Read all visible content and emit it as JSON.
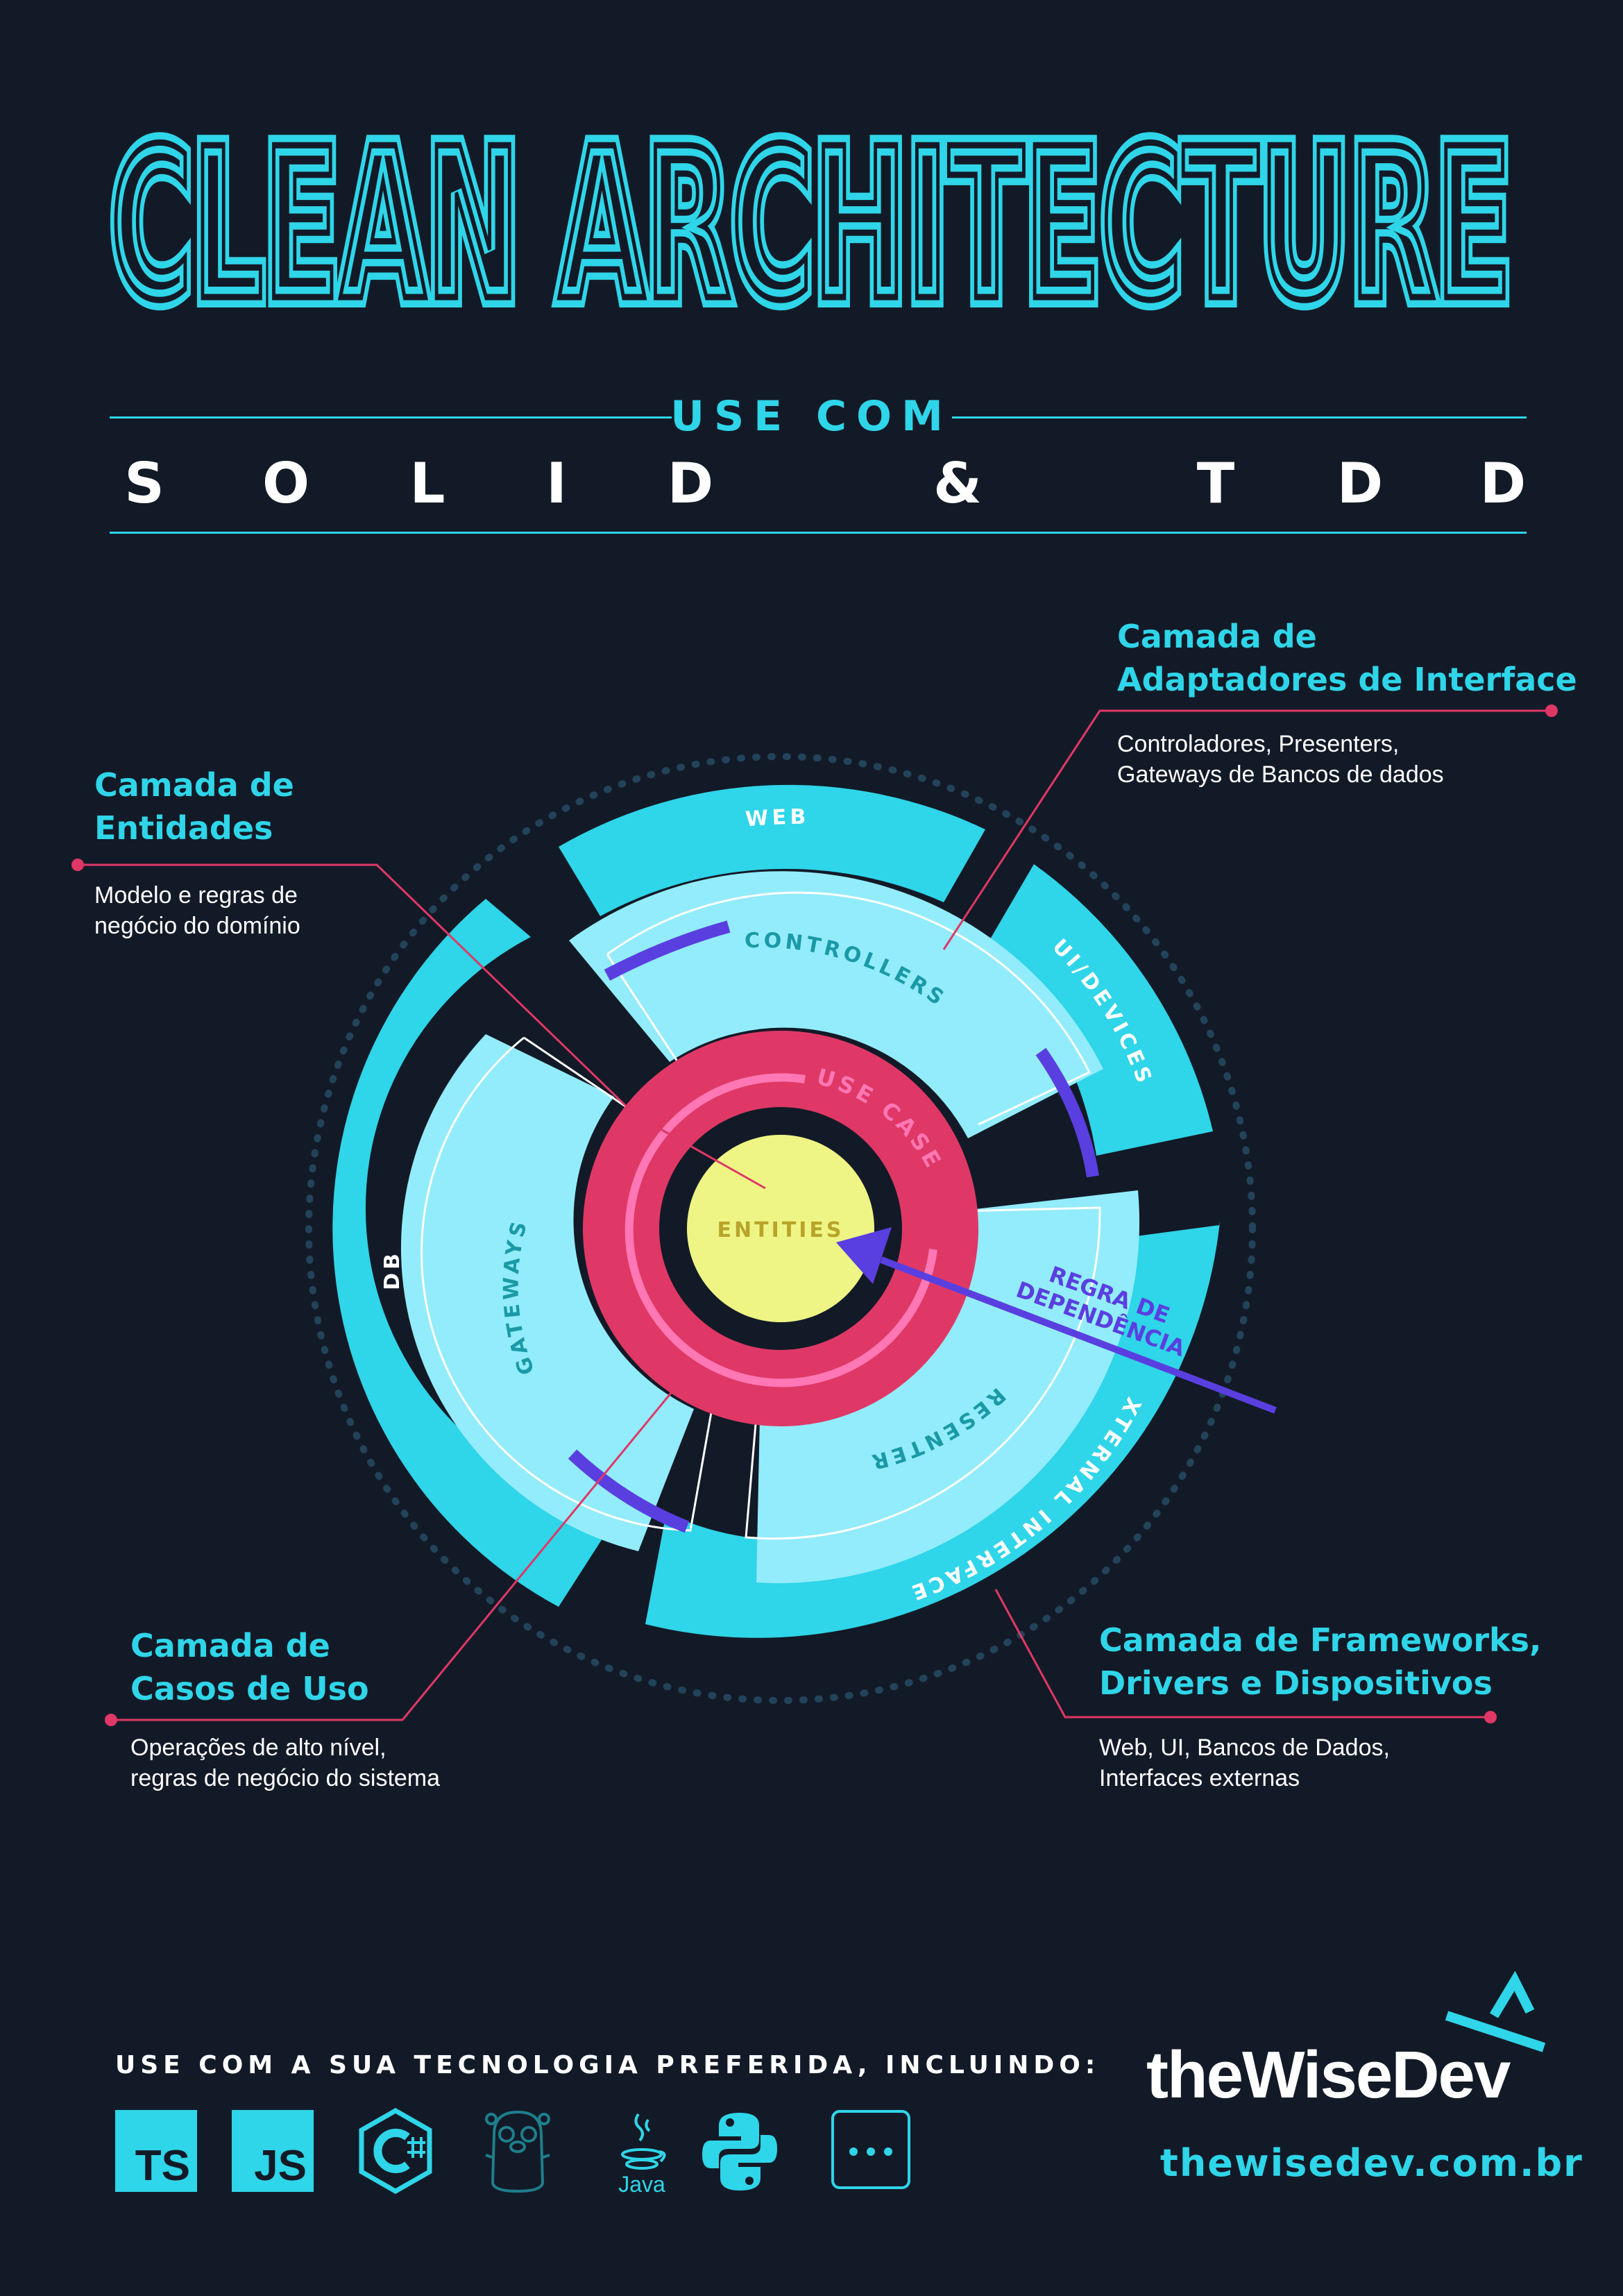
{
  "header": {
    "title": "CLEAN ARCHITECTURE",
    "subtitle": "USE COM",
    "letters": [
      "S",
      "O",
      "L",
      "I",
      "D",
      "&",
      "T",
      "D",
      "D"
    ]
  },
  "diagram": {
    "rings": {
      "outer": [
        "WEB",
        "UI/DEVICES",
        "EXTERNAL INTERFACES",
        "DB"
      ],
      "adapters": [
        "CONTROLLERS",
        "PRESENTERS",
        "GATEWAYS"
      ],
      "use_cases": "USE CASES",
      "entities": "ENTITIES"
    },
    "dependency_rule": [
      "REGRA DE",
      "DEPENDÊNCIA"
    ],
    "callouts": {
      "entities": {
        "title": [
          "Camada de",
          "Entidades"
        ],
        "desc": [
          "Modelo e regras de",
          "negócio do domínio"
        ]
      },
      "adapters": {
        "title": [
          "Camada de",
          "Adaptadores de Interface"
        ],
        "desc": [
          "Controladores, Presenters,",
          "Gateways de Bancos de dados"
        ]
      },
      "use_cases": {
        "title": [
          "Camada de",
          "Casos de Uso"
        ],
        "desc": [
          "Operações de alto nível,",
          "regras de negócio do sistema"
        ]
      },
      "frameworks": {
        "title": [
          "Camada de Frameworks,",
          "Drivers e Dispositivos"
        ],
        "desc": [
          "Web, UI, Bancos de Dados,",
          "Interfaces externas"
        ]
      }
    }
  },
  "footer": {
    "tech_label": "USE COM A SUA TECNOLOGIA PREFERIDA, INCLUINDO:",
    "technologies": [
      "TS",
      "JS",
      "Java"
    ],
    "brand": "theWiseDev",
    "url": "thewisedev.com.br"
  },
  "colors": {
    "background": "#131a27",
    "cyan": "#2fd5e8",
    "light_cyan": "#93ecfb",
    "pink": "#df3866",
    "yellow": "#eef584",
    "purple": "#5a3fe0"
  },
  "icons": [
    "csharp-icon",
    "gopher-icon",
    "java-icon",
    "python-icon",
    "more-icon",
    "wisedev-logo-icon"
  ]
}
